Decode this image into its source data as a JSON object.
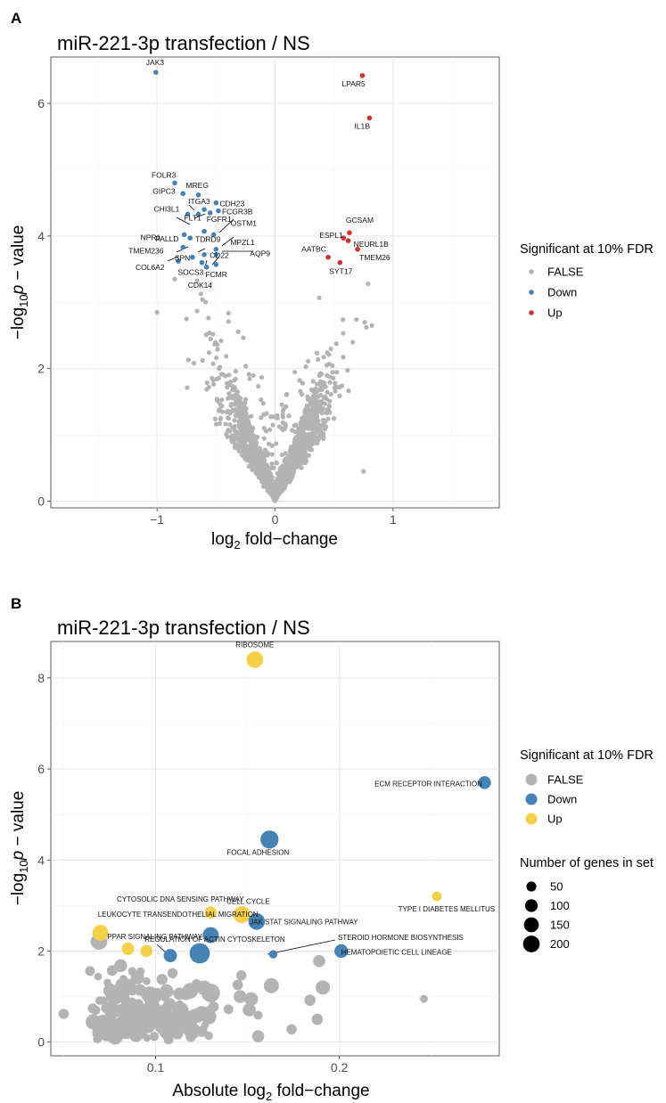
{
  "panels": [
    {
      "letter": "A",
      "title": "miR-221-3p transfection / NS",
      "xlabel_main": "log",
      "xlabel_sub": "2",
      "xlabel_rest": " fold−change",
      "ylabel_pre": "−log",
      "ylabel_sub": "10",
      "ylabel_p": "p",
      "ylabel_rest": " − value",
      "legend": {
        "title": "Significant at 10% FDR",
        "items": [
          {
            "label": "FALSE",
            "color": "#b3b3b3"
          },
          {
            "label": "Down",
            "color": "#4682b4"
          },
          {
            "label": "Up",
            "color": "#cd3333"
          }
        ]
      }
    },
    {
      "letter": "B",
      "title": "miR-221-3p transfection / NS",
      "xlabel_main": "Absolute log",
      "xlabel_sub": "2",
      "xlabel_rest": " fold−change",
      "ylabel_pre": "−log",
      "ylabel_sub": "10",
      "ylabel_p": "p",
      "ylabel_rest": " − value",
      "legend": {
        "title": "Significant at 10% FDR",
        "items": [
          {
            "label": "FALSE",
            "color": "#b3b3b3"
          },
          {
            "label": "Down",
            "color": "#4682b4"
          },
          {
            "label": "Up",
            "color": "#f5d04a"
          }
        ],
        "size_title": "Number of genes in set",
        "size_items": [
          {
            "label": "50",
            "n": 50
          },
          {
            "label": "100",
            "n": 100
          },
          {
            "label": "150",
            "n": 150
          },
          {
            "label": "200",
            "n": 200
          }
        ]
      }
    }
  ],
  "chart_data": [
    {
      "type": "scatter",
      "title": "miR-221-3p transfection / NS",
      "xlabel": "log2 fold-change",
      "ylabel": "-log10 p - value",
      "xlim": [
        -1.9,
        1.9
      ],
      "ylim": [
        -0.1,
        6.7
      ],
      "xticks": [
        -1,
        0,
        1
      ],
      "yticks": [
        0,
        2,
        4,
        6
      ],
      "grid": true,
      "legend_position": "right",
      "colors": {
        "FALSE": "#b3b3b3",
        "Down": "#4682b4",
        "Up": "#cd3333"
      },
      "series": [
        {
          "name": "Down",
          "points": [
            {
              "x": -1.01,
              "y": 6.47,
              "label": "JAK3"
            },
            {
              "x": -0.85,
              "y": 4.8,
              "label": "FOLR3"
            },
            {
              "x": -0.78,
              "y": 4.64,
              "label": "GIPC3"
            },
            {
              "x": -0.65,
              "y": 4.62,
              "label": "MREG"
            },
            {
              "x": -0.5,
              "y": 4.5,
              "label": "CDH23"
            },
            {
              "x": -0.6,
              "y": 4.4,
              "label": "ITGA3"
            },
            {
              "x": -0.48,
              "y": 4.38,
              "label": "FCGR3B"
            },
            {
              "x": -0.74,
              "y": 4.33,
              "label": "CHI3L1"
            },
            {
              "x": -0.65,
              "y": 4.33,
              "label": "FLT1"
            },
            {
              "x": -0.55,
              "y": 4.35,
              "label": "FGFR1"
            },
            {
              "x": -0.6,
              "y": 4.07,
              "label": "TDRD9"
            },
            {
              "x": -0.52,
              "y": 4.02,
              "label": "OSTM1"
            },
            {
              "x": -0.77,
              "y": 4.02,
              "label": "NPR1"
            },
            {
              "x": -0.72,
              "y": 3.97,
              "label": "PALLD"
            },
            {
              "x": -0.5,
              "y": 3.8,
              "label": "MPZL1"
            },
            {
              "x": -0.78,
              "y": 3.83,
              "label": "TMEM236"
            },
            {
              "x": -0.5,
              "y": 3.72,
              "label": "AQP9"
            },
            {
              "x": -0.6,
              "y": 3.72,
              "label": "CD22"
            },
            {
              "x": -0.7,
              "y": 3.68,
              "label": "SPN"
            },
            {
              "x": -0.82,
              "y": 3.62,
              "label": "COL6A2"
            },
            {
              "x": -0.62,
              "y": 3.6,
              "label": "SOCS3"
            },
            {
              "x": -0.5,
              "y": 3.57,
              "label": "FCMR"
            },
            {
              "x": -0.58,
              "y": 3.53,
              "label": "CDK14"
            }
          ]
        },
        {
          "name": "Up",
          "points": [
            {
              "x": 0.74,
              "y": 6.42,
              "label": "LPAR5"
            },
            {
              "x": 0.8,
              "y": 5.78,
              "label": "IL1B"
            },
            {
              "x": 0.63,
              "y": 4.05,
              "label": "GCSAM"
            },
            {
              "x": 0.58,
              "y": 3.97,
              "label": "ESPL1"
            },
            {
              "x": 0.62,
              "y": 3.93,
              "label": "NEURL1B"
            },
            {
              "x": 0.7,
              "y": 3.8,
              "label": "TMEM26"
            },
            {
              "x": 0.45,
              "y": 3.68,
              "label": "AATBC"
            },
            {
              "x": 0.55,
              "y": 3.6,
              "label": "SYT17"
            }
          ]
        }
      ]
    },
    {
      "type": "scatter",
      "title": "miR-221-3p transfection / NS",
      "xlabel": "Absolute log2 fold-change",
      "ylabel": "-log10 p - value",
      "xlim": [
        0.043,
        0.287
      ],
      "ylim": [
        -0.3,
        8.8
      ],
      "xticks": [
        0.1,
        0.2
      ],
      "yticks": [
        0,
        2,
        4,
        6,
        8
      ],
      "grid": true,
      "legend_position": "right",
      "colors": {
        "FALSE": "#b3b3b3",
        "Down": "#4682b4",
        "Up": "#f5d04a"
      },
      "series": [
        {
          "name": "Up",
          "points": [
            {
              "x": 0.154,
              "y": 8.4,
              "n": 120,
              "label": "RIBOSOME"
            },
            {
              "x": 0.253,
              "y": 3.2,
              "n": 25,
              "label": "TYPE I DIABETES MELLITUS"
            },
            {
              "x": 0.13,
              "y": 2.85,
              "n": 50,
              "label": "CYTOSOLIC DNA SENSING PATHWAY"
            },
            {
              "x": 0.147,
              "y": 2.8,
              "n": 125,
              "label": "CELL CYCLE"
            },
            {
              "x": 0.07,
              "y": 2.4,
              "n": 110,
              "label": "LEUKOCYTE TRANSENDOTHELIAL MIGRATION"
            },
            {
              "x": 0.085,
              "y": 2.05,
              "n": 55,
              "label": "PPAR SIGNALING PATHWAY"
            },
            {
              "x": 0.095,
              "y": 2.0,
              "n": 50
            }
          ]
        },
        {
          "name": "Down",
          "points": [
            {
              "x": 0.279,
              "y": 5.7,
              "n": 60,
              "label": "ECM RECEPTOR INTERACTION"
            },
            {
              "x": 0.162,
              "y": 4.45,
              "n": 150,
              "label": "FOCAL ADHESION"
            },
            {
              "x": 0.155,
              "y": 2.65,
              "n": 120,
              "label": "JAK STAT SIGNALING PATHWAY"
            },
            {
              "x": 0.13,
              "y": 2.35,
              "n": 110
            },
            {
              "x": 0.124,
              "y": 1.95,
              "n": 200,
              "label": "REGULATION OF ACTIN CYTOSKELETON"
            },
            {
              "x": 0.108,
              "y": 1.9,
              "n": 65
            },
            {
              "x": 0.164,
              "y": 1.93,
              "n": 15,
              "label": "STEROID HORMONE BIOSYNTHESIS"
            },
            {
              "x": 0.201,
              "y": 2.0,
              "n": 70,
              "label": "HEMATOPOIETIC CELL LINEAGE"
            }
          ]
        }
      ]
    }
  ]
}
